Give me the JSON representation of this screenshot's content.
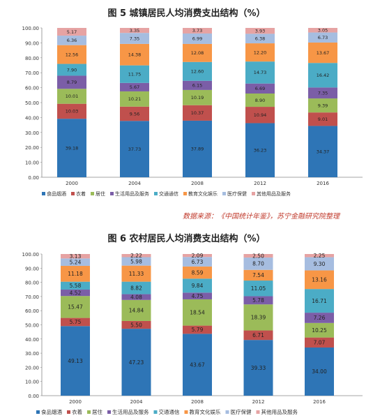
{
  "chart_data": [
    {
      "type": "bar",
      "stacked": true,
      "title": "图 5  城镇居民人均消费支出结构（%）",
      "categories": [
        "2000",
        "2004",
        "2008",
        "2012",
        "2016"
      ],
      "ylim": [
        0,
        100
      ],
      "yticks": [
        "0.00",
        "10.00",
        "20.00",
        "30.00",
        "40.00",
        "50.00",
        "60.00",
        "70.00",
        "80.00",
        "90.00",
        "100.00"
      ],
      "legend_position": "bottom",
      "grid": false,
      "series": [
        {
          "name": "食品烟酒",
          "color": "#2e75b6",
          "values": [
            39.18,
            37.73,
            37.89,
            36.23,
            34.37
          ]
        },
        {
          "name": "衣着",
          "color": "#c0504d",
          "values": [
            10.03,
            9.56,
            10.37,
            10.94,
            9.01
          ]
        },
        {
          "name": "居住",
          "color": "#9bbb59",
          "values": [
            10.01,
            10.21,
            10.19,
            8.9,
            9.39
          ]
        },
        {
          "name": "生活用品及服务",
          "color": "#7b5ea7",
          "values": [
            8.79,
            5.67,
            6.15,
            6.69,
            7.35
          ]
        },
        {
          "name": "交通通信",
          "color": "#4bacc6",
          "values": [
            7.9,
            11.75,
            12.6,
            14.73,
            16.42
          ]
        },
        {
          "name": "教育文化娱乐",
          "color": "#f79646",
          "values": [
            12.56,
            14.38,
            12.08,
            12.2,
            13.67
          ]
        },
        {
          "name": "医疗保健",
          "color": "#a6bde0",
          "values": [
            6.36,
            7.35,
            6.99,
            6.38,
            6.73
          ]
        },
        {
          "name": "其他用品及服务",
          "color": "#e6a3a3",
          "values": [
            5.17,
            3.35,
            3.73,
            3.93,
            3.05
          ]
        }
      ],
      "source_note": "数据来源：《中国统计年鉴》，苏宁金融研究院整理"
    },
    {
      "type": "bar",
      "stacked": true,
      "title": "图 6   农村居民人均消费支出结构（%）",
      "categories": [
        "2000",
        "2004",
        "2008",
        "2012",
        "2016"
      ],
      "ylim": [
        0,
        100
      ],
      "yticks": [
        "0.00",
        "10.00",
        "20.00",
        "30.00",
        "40.00",
        "50.00",
        "60.00",
        "70.00",
        "80.00",
        "90.00",
        "100.00"
      ],
      "legend_position": "bottom",
      "grid": false,
      "series": [
        {
          "name": "食品烟酒",
          "color": "#2e75b6",
          "values": [
            49.13,
            47.23,
            43.67,
            39.33,
            34.0
          ]
        },
        {
          "name": "衣着",
          "color": "#c0504d",
          "values": [
            5.75,
            5.5,
            5.79,
            6.71,
            7.07
          ]
        },
        {
          "name": "居住",
          "color": "#9bbb59",
          "values": [
            15.47,
            14.84,
            18.54,
            18.39,
            10.25
          ]
        },
        {
          "name": "生活用品及服务",
          "color": "#7b5ea7",
          "values": [
            4.52,
            4.08,
            4.75,
            5.78,
            7.26
          ]
        },
        {
          "name": "交通通信",
          "color": "#4bacc6",
          "values": [
            5.58,
            8.82,
            9.84,
            11.05,
            16.71
          ]
        },
        {
          "name": "教育文化娱乐",
          "color": "#f79646",
          "values": [
            11.18,
            11.33,
            8.59,
            7.54,
            13.16
          ]
        },
        {
          "name": "医疗保健",
          "color": "#a6bde0",
          "values": [
            5.24,
            5.98,
            6.73,
            8.7,
            9.3
          ]
        },
        {
          "name": "其他用品及服务",
          "color": "#e6a3a3",
          "values": [
            3.13,
            2.22,
            2.09,
            2.5,
            2.25
          ]
        }
      ]
    }
  ]
}
